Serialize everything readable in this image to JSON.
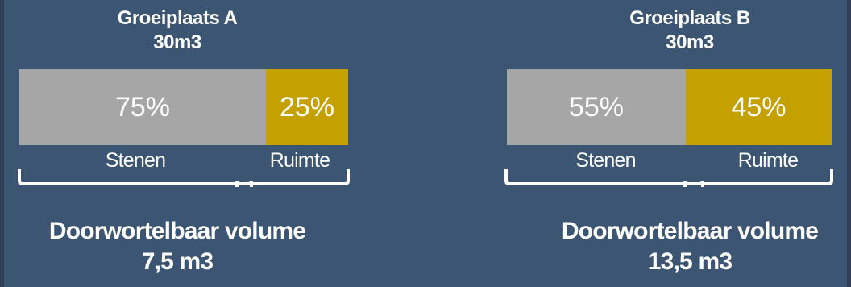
{
  "colors": {
    "background": "#3c5572",
    "stones": "#a6a6a6",
    "space": "#c4a000",
    "text": "#ffffff"
  },
  "panels": [
    {
      "title": "Groeiplaats A",
      "capacity": "30m3",
      "stones_percent": "75%",
      "space_percent": "25%",
      "stones_fraction": 0.75,
      "space_fraction": 0.25,
      "stones_label": "Stenen",
      "space_label": "Ruimte",
      "volume_title": "Doorwortelbaar volume",
      "volume_value": "7,5 m3"
    },
    {
      "title": "Groeiplaats B",
      "capacity": "30m3",
      "stones_percent": "55%",
      "space_percent": "45%",
      "stones_fraction": 0.55,
      "space_fraction": 0.45,
      "stones_label": "Stenen",
      "space_label": "Ruimte",
      "volume_title": "Doorwortelbaar volume",
      "volume_value": "13,5 m3"
    }
  ]
}
